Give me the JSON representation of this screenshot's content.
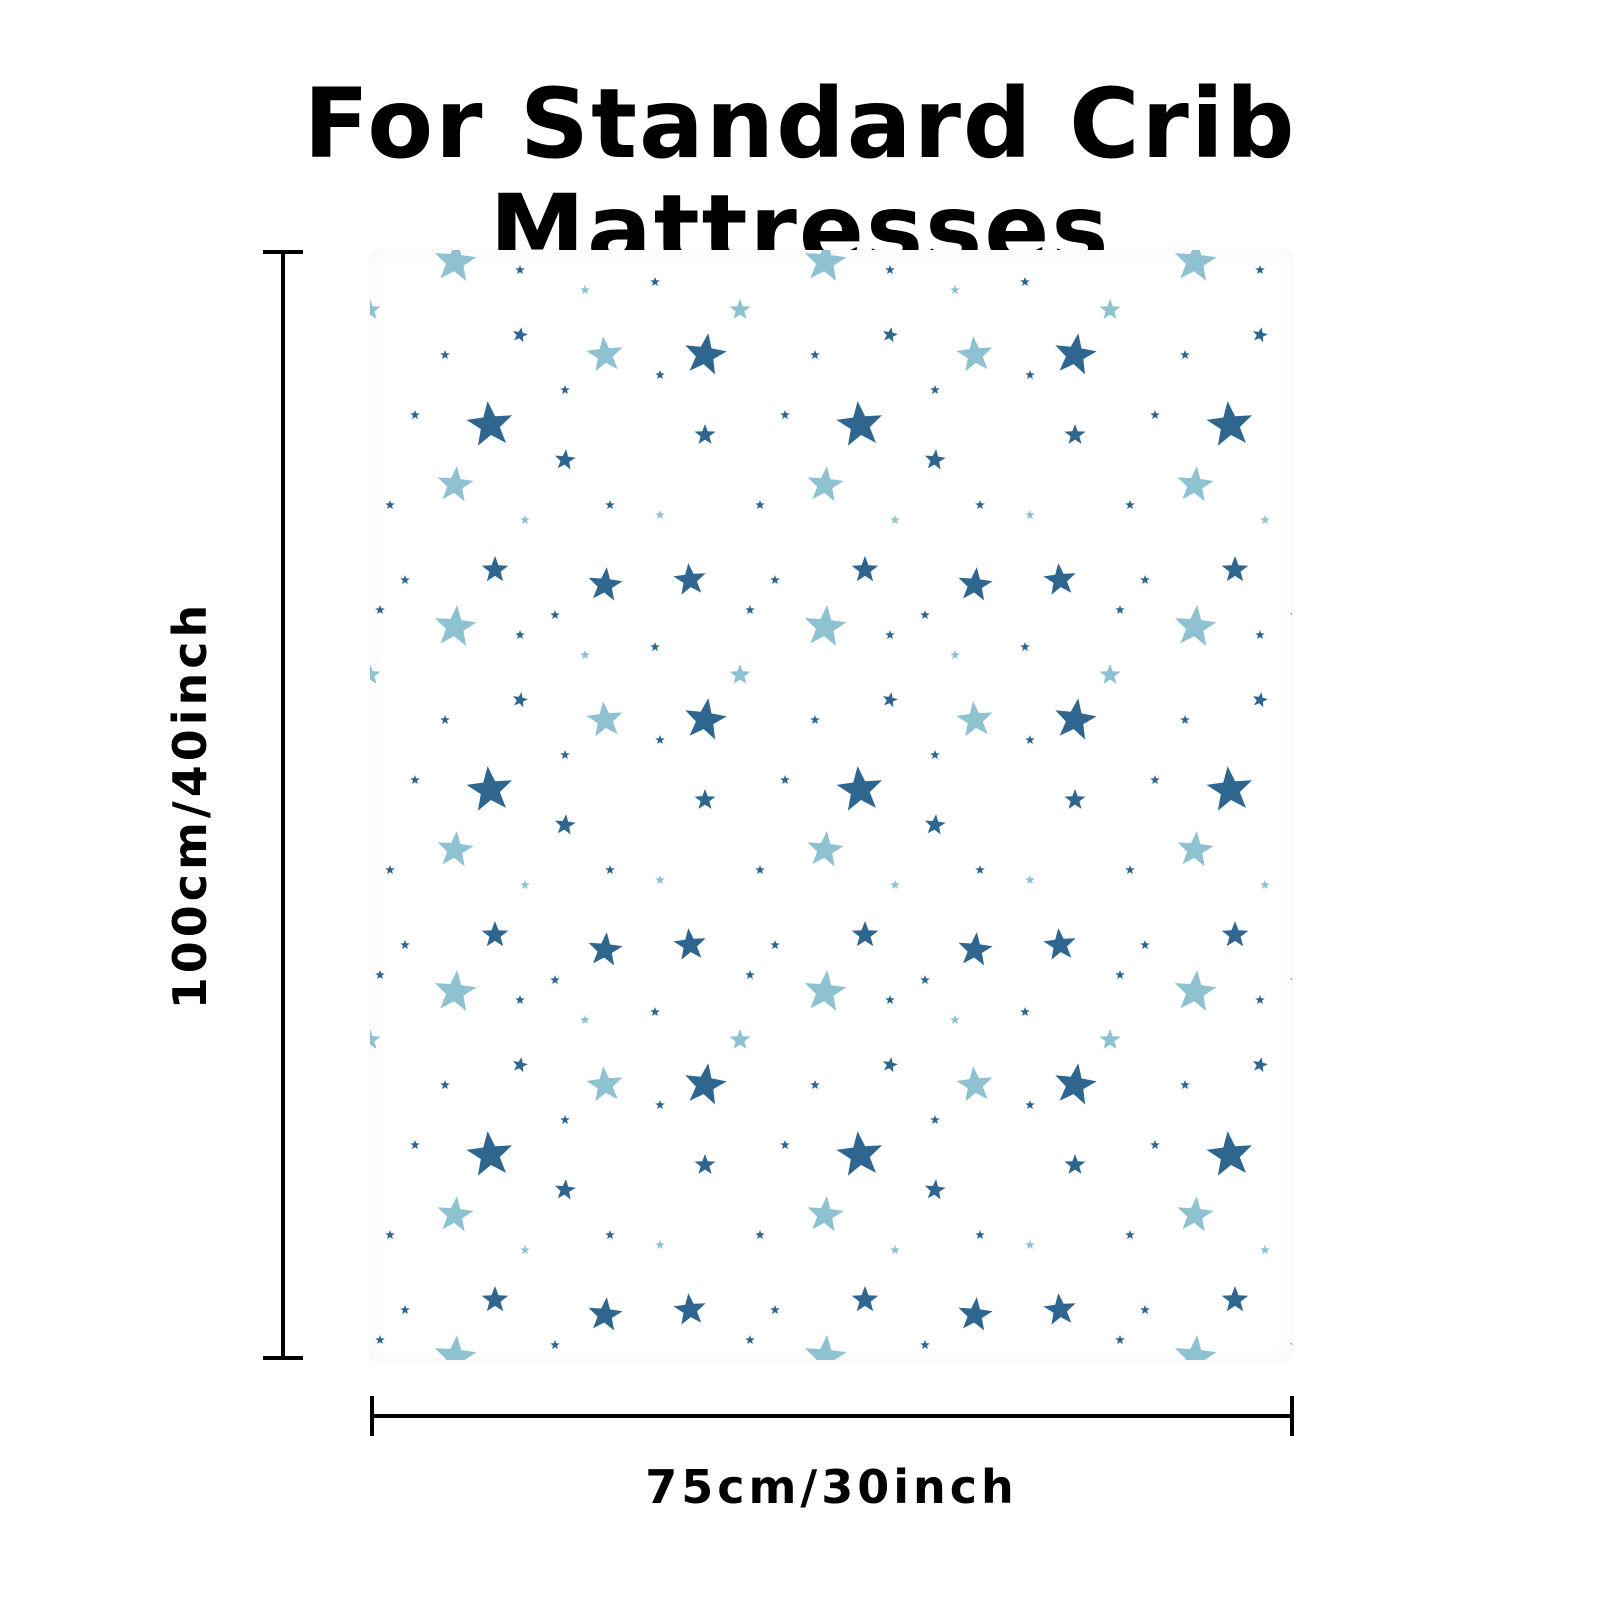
{
  "title": "For Standard Crib Mattresses",
  "dimensions": {
    "height_label": "100cm/40inch",
    "width_label": "75cm/30inch"
  },
  "blanket": {
    "pattern": "stars",
    "colors": {
      "background": "#ffffff",
      "star_dark": "#2e6690",
      "star_light": "#8ec2d1"
    }
  }
}
